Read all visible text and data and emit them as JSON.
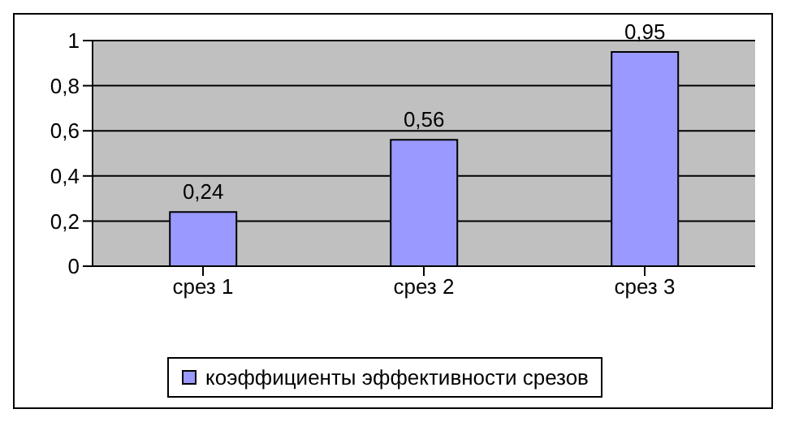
{
  "chart_data": {
    "type": "bar",
    "categories": [
      "срез 1",
      "срез 2",
      "срез 3"
    ],
    "series": [
      {
        "name": "коэффициенты эффективности срезов",
        "color": "#9999ff",
        "values": [
          0.24,
          0.56,
          0.95
        ],
        "value_labels": [
          "0,24",
          "0,56",
          "0,95"
        ]
      }
    ],
    "ylim": [
      0,
      1
    ],
    "yticks": [
      0,
      {
        "value": 0.2,
        "label": "0,2"
      },
      {
        "value": 0.4,
        "label": "0,4"
      },
      {
        "value": 0.6,
        "label": "0,6"
      },
      {
        "value": 0.8,
        "label": "0,8"
      },
      1
    ],
    "grid": "y",
    "legend": "bottom"
  }
}
